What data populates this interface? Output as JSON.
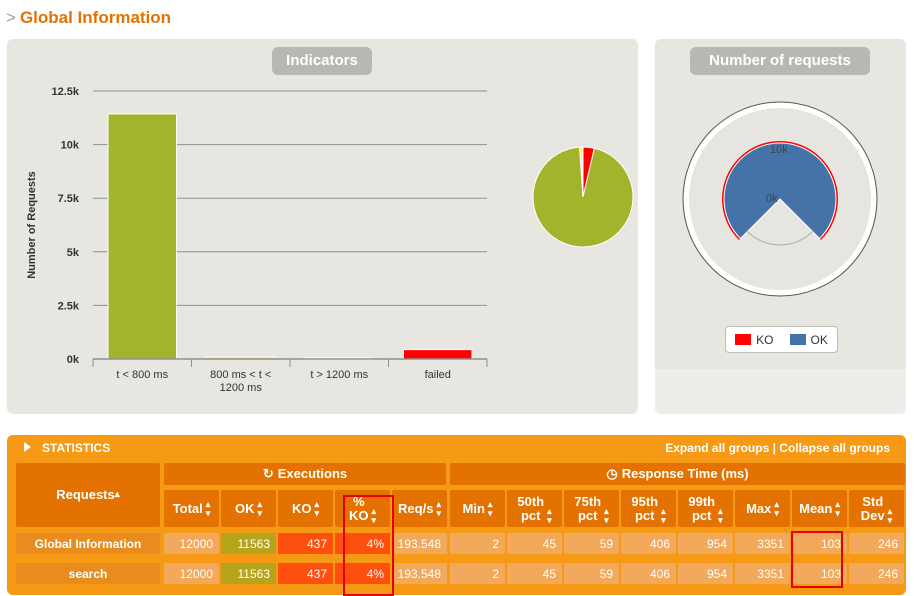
{
  "header": {
    "chevron": ">",
    "title": "Global Information"
  },
  "indicators": {
    "title": "Indicators",
    "chart_data": {
      "type": "bar",
      "ylabel": "Number of Requests",
      "ylim": [
        0,
        12500
      ],
      "yticks": [
        "0k",
        "2.5k",
        "5k",
        "7.5k",
        "10k",
        "12.5k"
      ],
      "categories": [
        "t < 800 ms",
        "800 ms < t < 1200 ms",
        "t > 1200 ms",
        "failed"
      ],
      "category_lines": [
        [
          "t < 800 ms"
        ],
        [
          "800 ms < t <",
          "1200 ms"
        ],
        [
          "t > 1200 ms"
        ],
        [
          "failed"
        ]
      ],
      "values": [
        11430,
        90,
        43,
        437
      ],
      "colors": [
        "#a2b42b",
        "#f3df2d",
        "#f3df2d",
        "#ff0000"
      ]
    },
    "pie_data": {
      "type": "pie",
      "values": [
        11430,
        90,
        43,
        437
      ],
      "colors": [
        "#a2b42b",
        "#f5e52f",
        "#f5e52f",
        "#ff0000"
      ]
    }
  },
  "requests_panel": {
    "title": "Number of requests",
    "gauge": {
      "labels": [
        "10k",
        "0k"
      ],
      "ok": 11563,
      "ko": 437,
      "max": 12000
    },
    "legend": [
      {
        "name": "KO",
        "color": "#ff0000"
      },
      {
        "name": "OK",
        "color": "#4572a7"
      }
    ]
  },
  "statistics": {
    "title": "STATISTICS",
    "expand_label": "Expand all groups",
    "separator": "|",
    "collapse_label": "Collapse all groups",
    "group_requests": "Requests",
    "group_executions": "Executions",
    "group_response": "Response Time (ms)",
    "columns": [
      "Total",
      "OK",
      "KO",
      "% KO",
      "Req/s",
      "Min",
      "50th pct",
      "75th pct",
      "95th pct",
      "99th pct",
      "Max",
      "Mean",
      "Std Dev"
    ],
    "rows": [
      {
        "name": "Global Information",
        "values": [
          "12000",
          "11563",
          "437",
          "4%",
          "193.548",
          "2",
          "45",
          "59",
          "406",
          "954",
          "3351",
          "103",
          "246"
        ]
      },
      {
        "name": "search",
        "values": [
          "12000",
          "11563",
          "437",
          "4%",
          "193.548",
          "2",
          "45",
          "59",
          "406",
          "954",
          "3351",
          "103",
          "246"
        ]
      }
    ]
  }
}
